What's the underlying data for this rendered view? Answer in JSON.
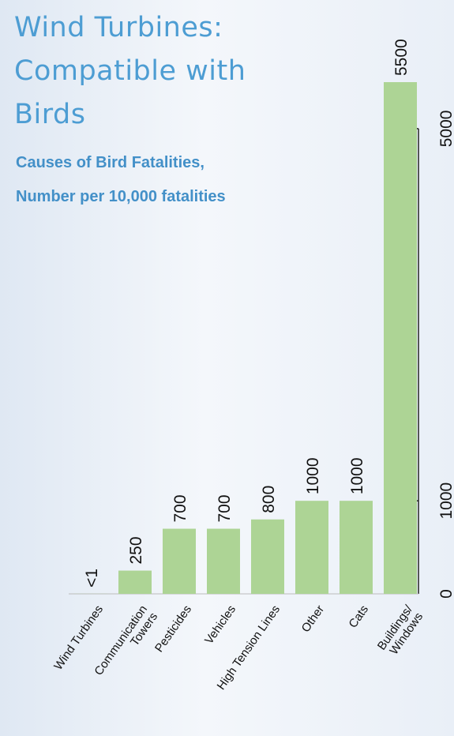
{
  "chart_data": {
    "type": "bar",
    "title": "Wind Turbines:\nCompatible with\nBirds",
    "subtitle": "Causes of Bird Fatalities,\nNumber per 10,000 fatalities",
    "categories": [
      "Wind Turbines",
      "Communication\nTowers",
      "Pesticides",
      "Vehicles",
      "High Tension Lines",
      "Other",
      "Cats",
      "Buildings/\nWindows"
    ],
    "values": [
      1,
      250,
      700,
      700,
      800,
      1000,
      1000,
      5500
    ],
    "value_labels": [
      "<1",
      "250",
      "700",
      "700",
      "800",
      "1000",
      "1000",
      "5500"
    ],
    "color": "#add495",
    "ylim": [
      0,
      5500
    ],
    "yticks": [
      0,
      1000,
      5000
    ],
    "grid": false
  }
}
